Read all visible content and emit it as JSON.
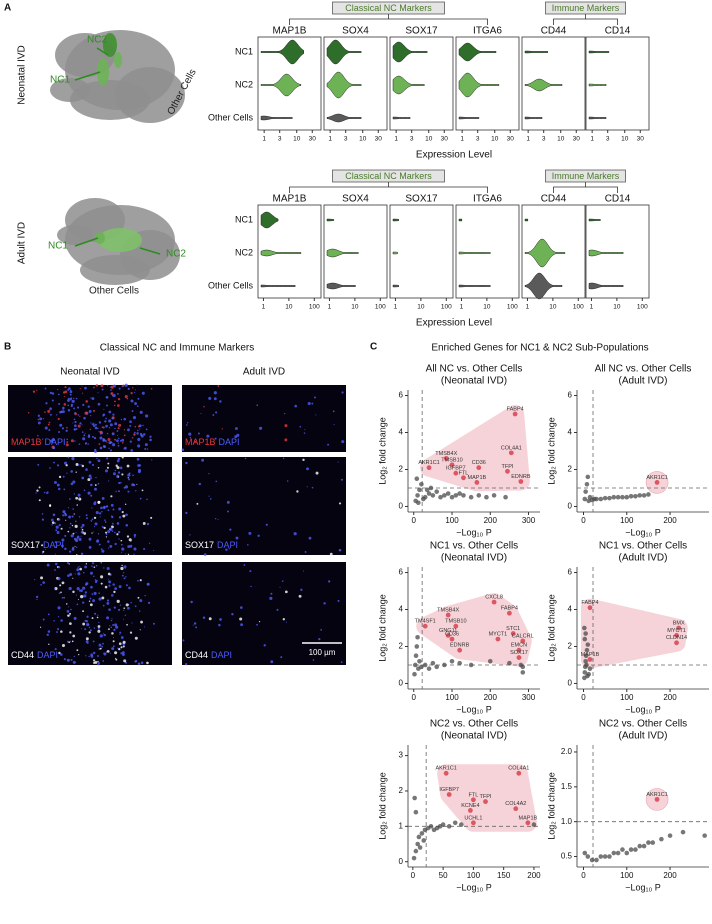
{
  "panel_a": {
    "label": "A",
    "row_colors": [
      "#2f6e2a",
      "#6db356",
      "#5a5a5a"
    ],
    "sections": [
      {
        "sample": "Neonatal IVD",
        "umap_labels": [
          "NC2",
          "NC1",
          "Other Cells"
        ],
        "groups": [
          {
            "title": "Classical NC Markers",
            "genes": [
              "MAP1B",
              "SOX4",
              "SOX17",
              "ITGA6"
            ]
          },
          {
            "title": "Immune Markers",
            "genes": [
              "CD44",
              "CD14"
            ]
          }
        ],
        "rows": [
          "NC1",
          "NC2",
          "Other Cells"
        ],
        "xticks": [
          1,
          3,
          10,
          30
        ],
        "xlabel": "Expression Level"
      },
      {
        "sample": "Adult IVD",
        "umap_labels": [
          "NC1",
          "NC2",
          "Other Cells"
        ],
        "groups": [
          {
            "title": "Classical NC Markers",
            "genes": [
              "MAP1B",
              "SOX4",
              "SOX17",
              "ITGA6"
            ]
          },
          {
            "title": "Immune Markers",
            "genes": [
              "CD44",
              "CD14"
            ]
          }
        ],
        "rows": [
          "NC1",
          "NC2",
          "Other Cells"
        ],
        "xticks": [
          1,
          10,
          100
        ],
        "xlabel": "Expression Level"
      }
    ]
  },
  "panel_b": {
    "label": "B",
    "title": "Classical NC and Immune Markers",
    "columns": [
      "Neonatal IVD",
      "Adult IVD"
    ],
    "rows": [
      {
        "marker": "MAP1B",
        "marker_color": "#e8383d",
        "stain": "DAPI",
        "stain_color": "#4d5cff"
      },
      {
        "marker": "SOX17",
        "marker_color": "#ffffff",
        "stain": "DAPI",
        "stain_color": "#4d5cff"
      },
      {
        "marker": "CD44",
        "marker_color": "#ffffff",
        "stain": "DAPI",
        "stain_color": "#4d5cff"
      }
    ],
    "scale_bar": "100 µm"
  },
  "panel_c": {
    "label": "C",
    "title": "Enriched Genes for NC1 & NC2 Sub-Populations",
    "colors": {
      "background": "#4a4a4a",
      "enriched": "#d8414d",
      "hull": "#f6d3d8"
    },
    "plots": [
      {
        "title": "All NC vs. Other Cells",
        "subtitle": "(Neonatal IVD)",
        "xlabel": "−Log₁₀ P",
        "ylabel": "Log₂ fold change",
        "xlim": [
          -15,
          330
        ],
        "ylim": [
          -0.3,
          6.3
        ],
        "xticks": [
          0,
          100,
          200,
          300
        ],
        "yticks": [
          0,
          2,
          4,
          6
        ],
        "x_threshold": 22,
        "y_threshold": 1,
        "genes": [
          {
            "label": "FABP4",
            "x": 265,
            "y": 5.0
          },
          {
            "label": "TMSB4X",
            "x": 85,
            "y": 2.6
          },
          {
            "label": "TMSB10",
            "x": 100,
            "y": 2.25
          },
          {
            "label": "AKR1C1",
            "x": 40,
            "y": 2.1
          },
          {
            "label": "IGFBP7",
            "x": 110,
            "y": 1.8
          },
          {
            "label": "FTL",
            "x": 130,
            "y": 1.55
          },
          {
            "label": "CD36",
            "x": 170,
            "y": 2.1
          },
          {
            "label": "COL4A1",
            "x": 255,
            "y": 2.9
          },
          {
            "label": "TFPI",
            "x": 245,
            "y": 1.9
          },
          {
            "label": "MAP1B",
            "x": 165,
            "y": 1.3
          },
          {
            "label": "EDNRB",
            "x": 280,
            "y": 1.35
          }
        ],
        "background": {
          "x": [
            5,
            10,
            15,
            20,
            30,
            40,
            50,
            60,
            70,
            80,
            90,
            100,
            110,
            120,
            130,
            150,
            170,
            190,
            210,
            240,
            8,
            12,
            25,
            35,
            45
          ],
          "y": [
            0.3,
            0.6,
            0.9,
            1.2,
            0.5,
            0.7,
            0.6,
            0.8,
            0.5,
            0.6,
            0.7,
            0.5,
            0.6,
            0.7,
            0.6,
            0.5,
            0.6,
            0.5,
            0.6,
            0.5,
            1.5,
            0.2,
            0.4,
            0.9,
            1.0
          ]
        }
      },
      {
        "title": "All NC vs. Other Cells",
        "subtitle": "(Adult IVD)",
        "xlabel": "−Log₁₀ P",
        "ylabel": "Log₂ fold change",
        "xlim": [
          -15,
          290
        ],
        "ylim": [
          -0.3,
          6.3
        ],
        "xticks": [
          0,
          100,
          200
        ],
        "yticks": [
          0,
          2,
          4,
          6
        ],
        "x_threshold": 22,
        "y_threshold": 1,
        "genes": [
          {
            "label": "AKR1C1",
            "x": 170,
            "y": 1.3
          }
        ],
        "background": {
          "x": [
            3,
            5,
            8,
            10,
            12,
            15,
            20,
            25,
            30,
            40,
            50,
            60,
            70,
            80,
            90,
            100,
            110,
            120,
            130,
            140,
            150
          ],
          "y": [
            0.4,
            0.8,
            1.2,
            1.6,
            0.3,
            0.5,
            0.35,
            0.4,
            0.4,
            0.4,
            0.45,
            0.45,
            0.5,
            0.5,
            0.5,
            0.5,
            0.55,
            0.55,
            0.6,
            0.6,
            0.65
          ]
        }
      },
      {
        "title": "NC1 vs. Other Cells",
        "subtitle": "(Neonatal IVD)",
        "xlabel": "−Log₁₀ P",
        "ylabel": "Log₂ fold change",
        "xlim": [
          -15,
          330
        ],
        "ylim": [
          -0.3,
          6.3
        ],
        "xticks": [
          0,
          100,
          200,
          300
        ],
        "yticks": [
          0,
          2,
          4,
          6
        ],
        "x_threshold": 22,
        "y_threshold": 1,
        "genes": [
          {
            "label": "CXCL8",
            "x": 210,
            "y": 4.4
          },
          {
            "label": "FABP4",
            "x": 250,
            "y": 3.8
          },
          {
            "label": "TMSB4X",
            "x": 90,
            "y": 3.7
          },
          {
            "label": "TMSB10",
            "x": 110,
            "y": 3.1
          },
          {
            "label": "TM4SF1",
            "x": 30,
            "y": 3.1
          },
          {
            "label": "GNG11",
            "x": 90,
            "y": 2.6
          },
          {
            "label": "CD36",
            "x": 100,
            "y": 2.4
          },
          {
            "label": "STC1",
            "x": 260,
            "y": 2.7
          },
          {
            "label": "MYCT1",
            "x": 220,
            "y": 2.4
          },
          {
            "label": "CALCRL",
            "x": 285,
            "y": 2.3
          },
          {
            "label": "EDNRB",
            "x": 120,
            "y": 1.8
          },
          {
            "label": "EMCN",
            "x": 275,
            "y": 1.8
          },
          {
            "label": "SOX17",
            "x": 275,
            "y": 1.4
          }
        ],
        "background": {
          "x": [
            2,
            4,
            6,
            8,
            10,
            12,
            15,
            20,
            30,
            40,
            50,
            60,
            80,
            100,
            120,
            150,
            200,
            250,
            280,
            285,
            285
          ],
          "y": [
            0.5,
            1.0,
            1.5,
            2.0,
            2.5,
            0.8,
            1.2,
            0.9,
            1.0,
            0.8,
            1.1,
            0.9,
            1.0,
            1.2,
            1.1,
            1.0,
            1.2,
            1.1,
            1.0,
            0.9,
            0.6
          ]
        }
      },
      {
        "title": "NC1 vs. Other Cells",
        "subtitle": "(Adult IVD)",
        "xlabel": "−Log₁₀ P",
        "ylabel": "Log₂ fold change",
        "xlim": [
          -15,
          290
        ],
        "ylim": [
          -0.3,
          6.3
        ],
        "xticks": [
          0,
          100,
          200
        ],
        "yticks": [
          0,
          2,
          4,
          6
        ],
        "x_threshold": 22,
        "y_threshold": 1,
        "genes": [
          {
            "label": "FABP4",
            "x": 15,
            "y": 4.1
          },
          {
            "label": "BMX",
            "x": 220,
            "y": 3.0
          },
          {
            "label": "MYCT1",
            "x": 215,
            "y": 2.6
          },
          {
            "label": "CLDN14",
            "x": 215,
            "y": 2.2
          },
          {
            "label": "MAP1B",
            "x": 15,
            "y": 1.3
          }
        ],
        "background": {
          "x": [
            2,
            3,
            4,
            5,
            6,
            8,
            10,
            12,
            15,
            3,
            5,
            2,
            7,
            9
          ],
          "y": [
            0.3,
            0.6,
            0.9,
            1.2,
            1.5,
            1.8,
            2.1,
            0.5,
            0.8,
            2.4,
            2.7,
            3.0,
            1.0,
            0.4
          ]
        }
      },
      {
        "title": "NC2 vs. Other Cells",
        "subtitle": "(Neonatal IVD)",
        "xlabel": "−Log₁₀ P",
        "ylabel": "Log₂ fold change",
        "xlim": [
          -8,
          210
        ],
        "ylim": [
          -0.15,
          3.3
        ],
        "xticks": [
          0,
          50,
          100,
          150,
          200
        ],
        "yticks": [
          0,
          1,
          2,
          3
        ],
        "x_threshold": 22,
        "y_threshold": 1,
        "genes": [
          {
            "label": "AKR1C1",
            "x": 55,
            "y": 2.5
          },
          {
            "label": "COL4A1",
            "x": 175,
            "y": 2.5
          },
          {
            "label": "IGFBP7",
            "x": 60,
            "y": 1.9
          },
          {
            "label": "FTL",
            "x": 100,
            "y": 1.75
          },
          {
            "label": "TFPI",
            "x": 120,
            "y": 1.7
          },
          {
            "label": "KCNE4",
            "x": 95,
            "y": 1.45
          },
          {
            "label": "COL4A2",
            "x": 170,
            "y": 1.5
          },
          {
            "label": "UCHL1",
            "x": 100,
            "y": 1.1
          },
          {
            "label": "MAP1B",
            "x": 190,
            "y": 1.1
          }
        ],
        "background": {
          "x": [
            2,
            5,
            8,
            10,
            15,
            20,
            25,
            30,
            35,
            40,
            45,
            50,
            60,
            70,
            80,
            5,
            3,
            12,
            18,
            200
          ],
          "y": [
            0.1,
            0.3,
            0.5,
            0.7,
            0.8,
            0.9,
            0.95,
            1.0,
            0.9,
            0.95,
            1.0,
            1.05,
            1.0,
            1.1,
            1.05,
            1.4,
            1.8,
            0.4,
            0.6,
            1.05
          ]
        }
      },
      {
        "title": "NC2 vs. Other Cells",
        "subtitle": "(Adult IVD)",
        "xlabel": "−Log₁₀ P",
        "ylabel": "Log₂ fold change",
        "xlim": [
          -15,
          290
        ],
        "ylim": [
          0.35,
          2.1
        ],
        "xticks": [
          0,
          100,
          200
        ],
        "yticks": [
          {
            "value": 0.5,
            "label": "0.5"
          },
          {
            "value": 1,
            "label": "1.0"
          },
          {
            "value": 1.5,
            "label": "1.5"
          },
          {
            "value": 2,
            "label": "2.0"
          }
        ],
        "x_threshold": 22,
        "y_threshold": 1,
        "genes": [
          {
            "label": "AKR1C1",
            "x": 170,
            "y": 1.32
          }
        ],
        "background": {
          "x": [
            3,
            10,
            20,
            30,
            40,
            50,
            60,
            70,
            80,
            90,
            100,
            110,
            120,
            130,
            140,
            150,
            160,
            180,
            200,
            230,
            280
          ],
          "y": [
            0.55,
            0.5,
            0.45,
            0.45,
            0.5,
            0.5,
            0.5,
            0.55,
            0.55,
            0.6,
            0.55,
            0.6,
            0.6,
            0.65,
            0.65,
            0.7,
            0.7,
            0.75,
            0.8,
            0.85,
            0.8
          ]
        }
      }
    ]
  }
}
